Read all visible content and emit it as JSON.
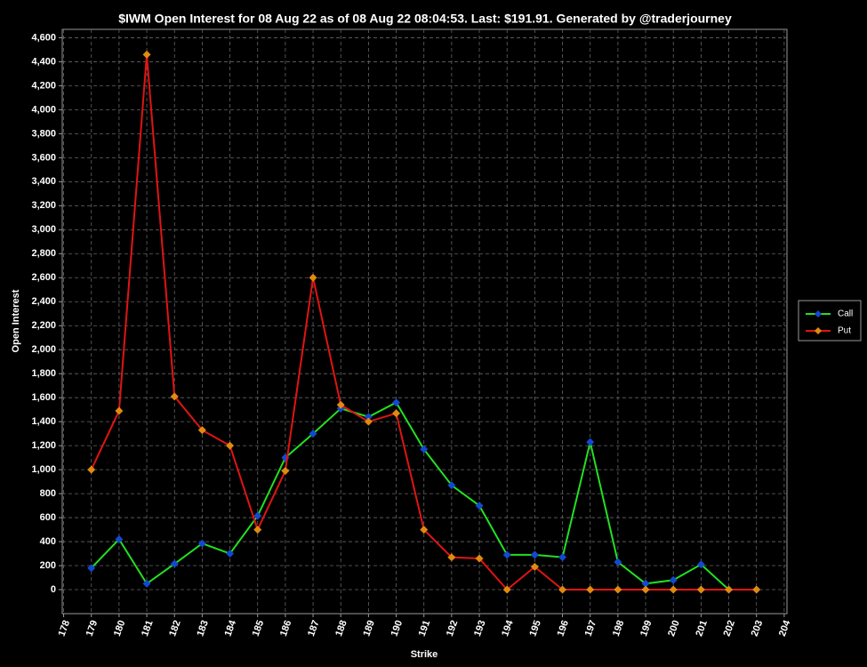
{
  "chart_data": {
    "type": "line",
    "title": "$IWM Open Interest for 08 Aug 22 as of 08 Aug 22 08:04:53.  Last: $191.91.  Generated by @traderjourney",
    "x_label": "Strike",
    "y_label": "Open Interest",
    "x": [
      179,
      180,
      181,
      182,
      183,
      184,
      185,
      186,
      187,
      188,
      189,
      190,
      191,
      192,
      193,
      194,
      195,
      196,
      197,
      198,
      199,
      200,
      201,
      202,
      203
    ],
    "series": [
      {
        "name": "Call",
        "color": "#22e022",
        "marker_color": "#1448d0",
        "values": [
          180,
          420,
          50,
          215,
          385,
          300,
          615,
          1100,
          1300,
          1510,
          1440,
          1560,
          1170,
          870,
          700,
          290,
          290,
          270,
          1230,
          230,
          50,
          80,
          210,
          0,
          0
        ]
      },
      {
        "name": "Put",
        "color": "#e01414",
        "marker_color": "#e08a10",
        "values": [
          1000,
          1490,
          4460,
          1610,
          1330,
          1200,
          500,
          990,
          2600,
          1540,
          1400,
          1470,
          500,
          270,
          260,
          0,
          190,
          0,
          0,
          0,
          0,
          0,
          0,
          0,
          0
        ]
      }
    ],
    "xlim": [
      177.95,
      204.1
    ],
    "xticks": [
      178,
      179,
      180,
      181,
      182,
      183,
      184,
      185,
      186,
      187,
      188,
      189,
      190,
      191,
      192,
      193,
      194,
      195,
      196,
      197,
      198,
      199,
      200,
      201,
      202,
      203,
      204
    ],
    "ylim": [
      -200,
      4670
    ],
    "yticks": [
      0,
      200,
      400,
      600,
      800,
      {
        "value": 1000,
        "label": "1,000"
      },
      {
        "value": 1200,
        "label": "1,200"
      },
      {
        "value": 1400,
        "label": "1,400"
      },
      {
        "value": 1600,
        "label": "1,600"
      },
      {
        "value": 1800,
        "label": "1,800"
      },
      {
        "value": 2000,
        "label": "2,000"
      },
      {
        "value": 2200,
        "label": "2,200"
      },
      {
        "value": 2400,
        "label": "2,400"
      },
      {
        "value": 2600,
        "label": "2,600"
      },
      {
        "value": 2800,
        "label": "2,800"
      },
      {
        "value": 3000,
        "label": "3,000"
      },
      {
        "value": 3200,
        "label": "3,200"
      },
      {
        "value": 3400,
        "label": "3,400"
      },
      {
        "value": 3600,
        "label": "3,600"
      },
      {
        "value": 3800,
        "label": "3,800"
      },
      {
        "value": 4000,
        "label": "4,000"
      },
      {
        "value": 4200,
        "label": "4,200"
      },
      {
        "value": 4400,
        "label": "4,400"
      },
      {
        "value": 4600,
        "label": "4,600"
      }
    ],
    "grid": true,
    "legend": "right"
  }
}
